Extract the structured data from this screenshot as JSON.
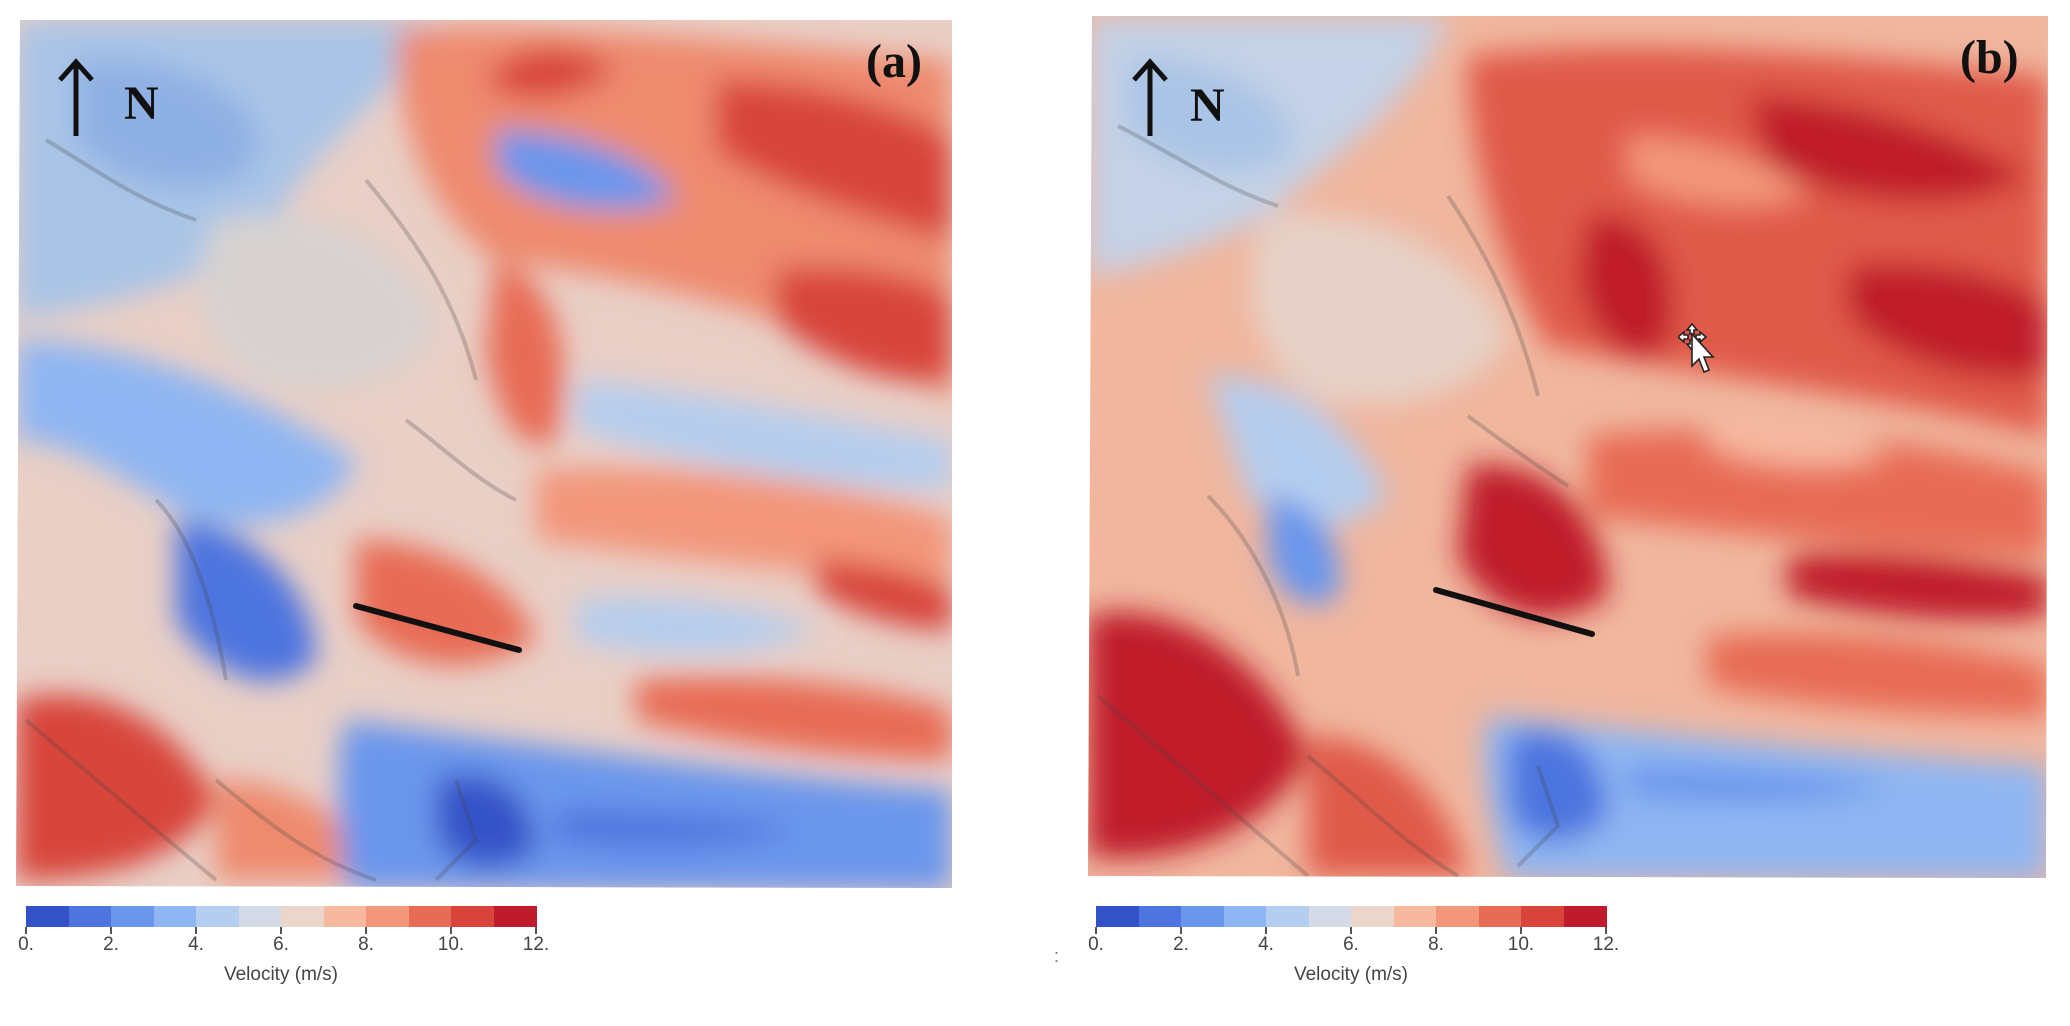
{
  "panels": [
    {
      "label": "(a)",
      "north": "N"
    },
    {
      "label": "(b)",
      "north": "N"
    }
  ],
  "colorbar": {
    "title": "Velocity (m/s)",
    "ticks": [
      "0.",
      "2.",
      "4.",
      "6.",
      "8.",
      "10.",
      "12."
    ],
    "range": [
      0,
      12
    ],
    "colors": [
      "#3452c8",
      "#4d74df",
      "#6a96ec",
      "#8fb6f2",
      "#b5cdee",
      "#d4dbe6",
      "#ecd6cc",
      "#f7b8a0",
      "#f3967a",
      "#e86c55",
      "#d8443a",
      "#c01b2c"
    ]
  },
  "stray_mark": ":",
  "icons": {
    "north_arrow": "arrow-up-icon",
    "cursor": "move-cursor-icon"
  }
}
